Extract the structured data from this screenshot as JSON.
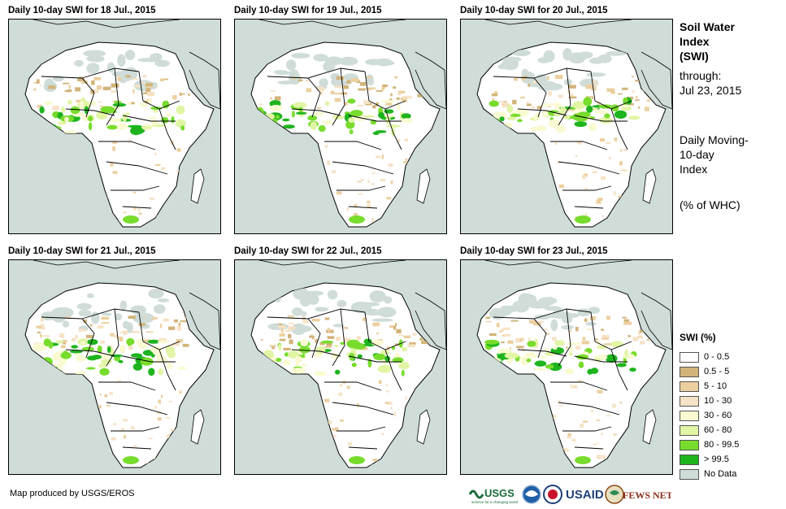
{
  "panels": [
    {
      "title": "Daily 10-day SWI for 18 Jul., 2015"
    },
    {
      "title": "Daily 10-day SWI for 19 Jul., 2015"
    },
    {
      "title": "Daily 10-day SWI for 20 Jul., 2015"
    },
    {
      "title": "Daily 10-day SWI for 21 Jul., 2015"
    },
    {
      "title": "Daily 10-day SWI for 22 Jul., 2015"
    },
    {
      "title": "Daily 10-day SWI for 23 Jul., 2015"
    }
  ],
  "side": {
    "title_line1": "Soil Water",
    "title_line2": "Index",
    "title_line3": "(SWI)",
    "through_label": "through:",
    "through_date": "Jul 23, 2015",
    "desc_line1": "Daily Moving-",
    "desc_line2": "10-day",
    "desc_line3": "Index",
    "units": "(% of WHC)"
  },
  "legend": {
    "title": "SWI (%)",
    "items": [
      {
        "label": "0 - 0.5",
        "color": "#ffffff"
      },
      {
        "label": "0.5 - 5",
        "color": "#d2b47a"
      },
      {
        "label": "5 - 10",
        "color": "#ebcf9f"
      },
      {
        "label": "10 - 30",
        "color": "#f6e2c4"
      },
      {
        "label": "30 - 60",
        "color": "#fafad2"
      },
      {
        "label": "60 - 80",
        "color": "#e1f5a5"
      },
      {
        "label": "80 - 99.5",
        "color": "#78dc2d"
      },
      {
        "label": "> 99.5",
        "color": "#1eb41e"
      },
      {
        "label": "No Data",
        "color": "#cfdcd8"
      }
    ]
  },
  "credit": "Map produced by USGS/EROS",
  "logos": {
    "usgs": "USGS",
    "usgs_tagline": "science for a changing world",
    "usaid": "USAID",
    "fews": "FEWS NET"
  }
}
